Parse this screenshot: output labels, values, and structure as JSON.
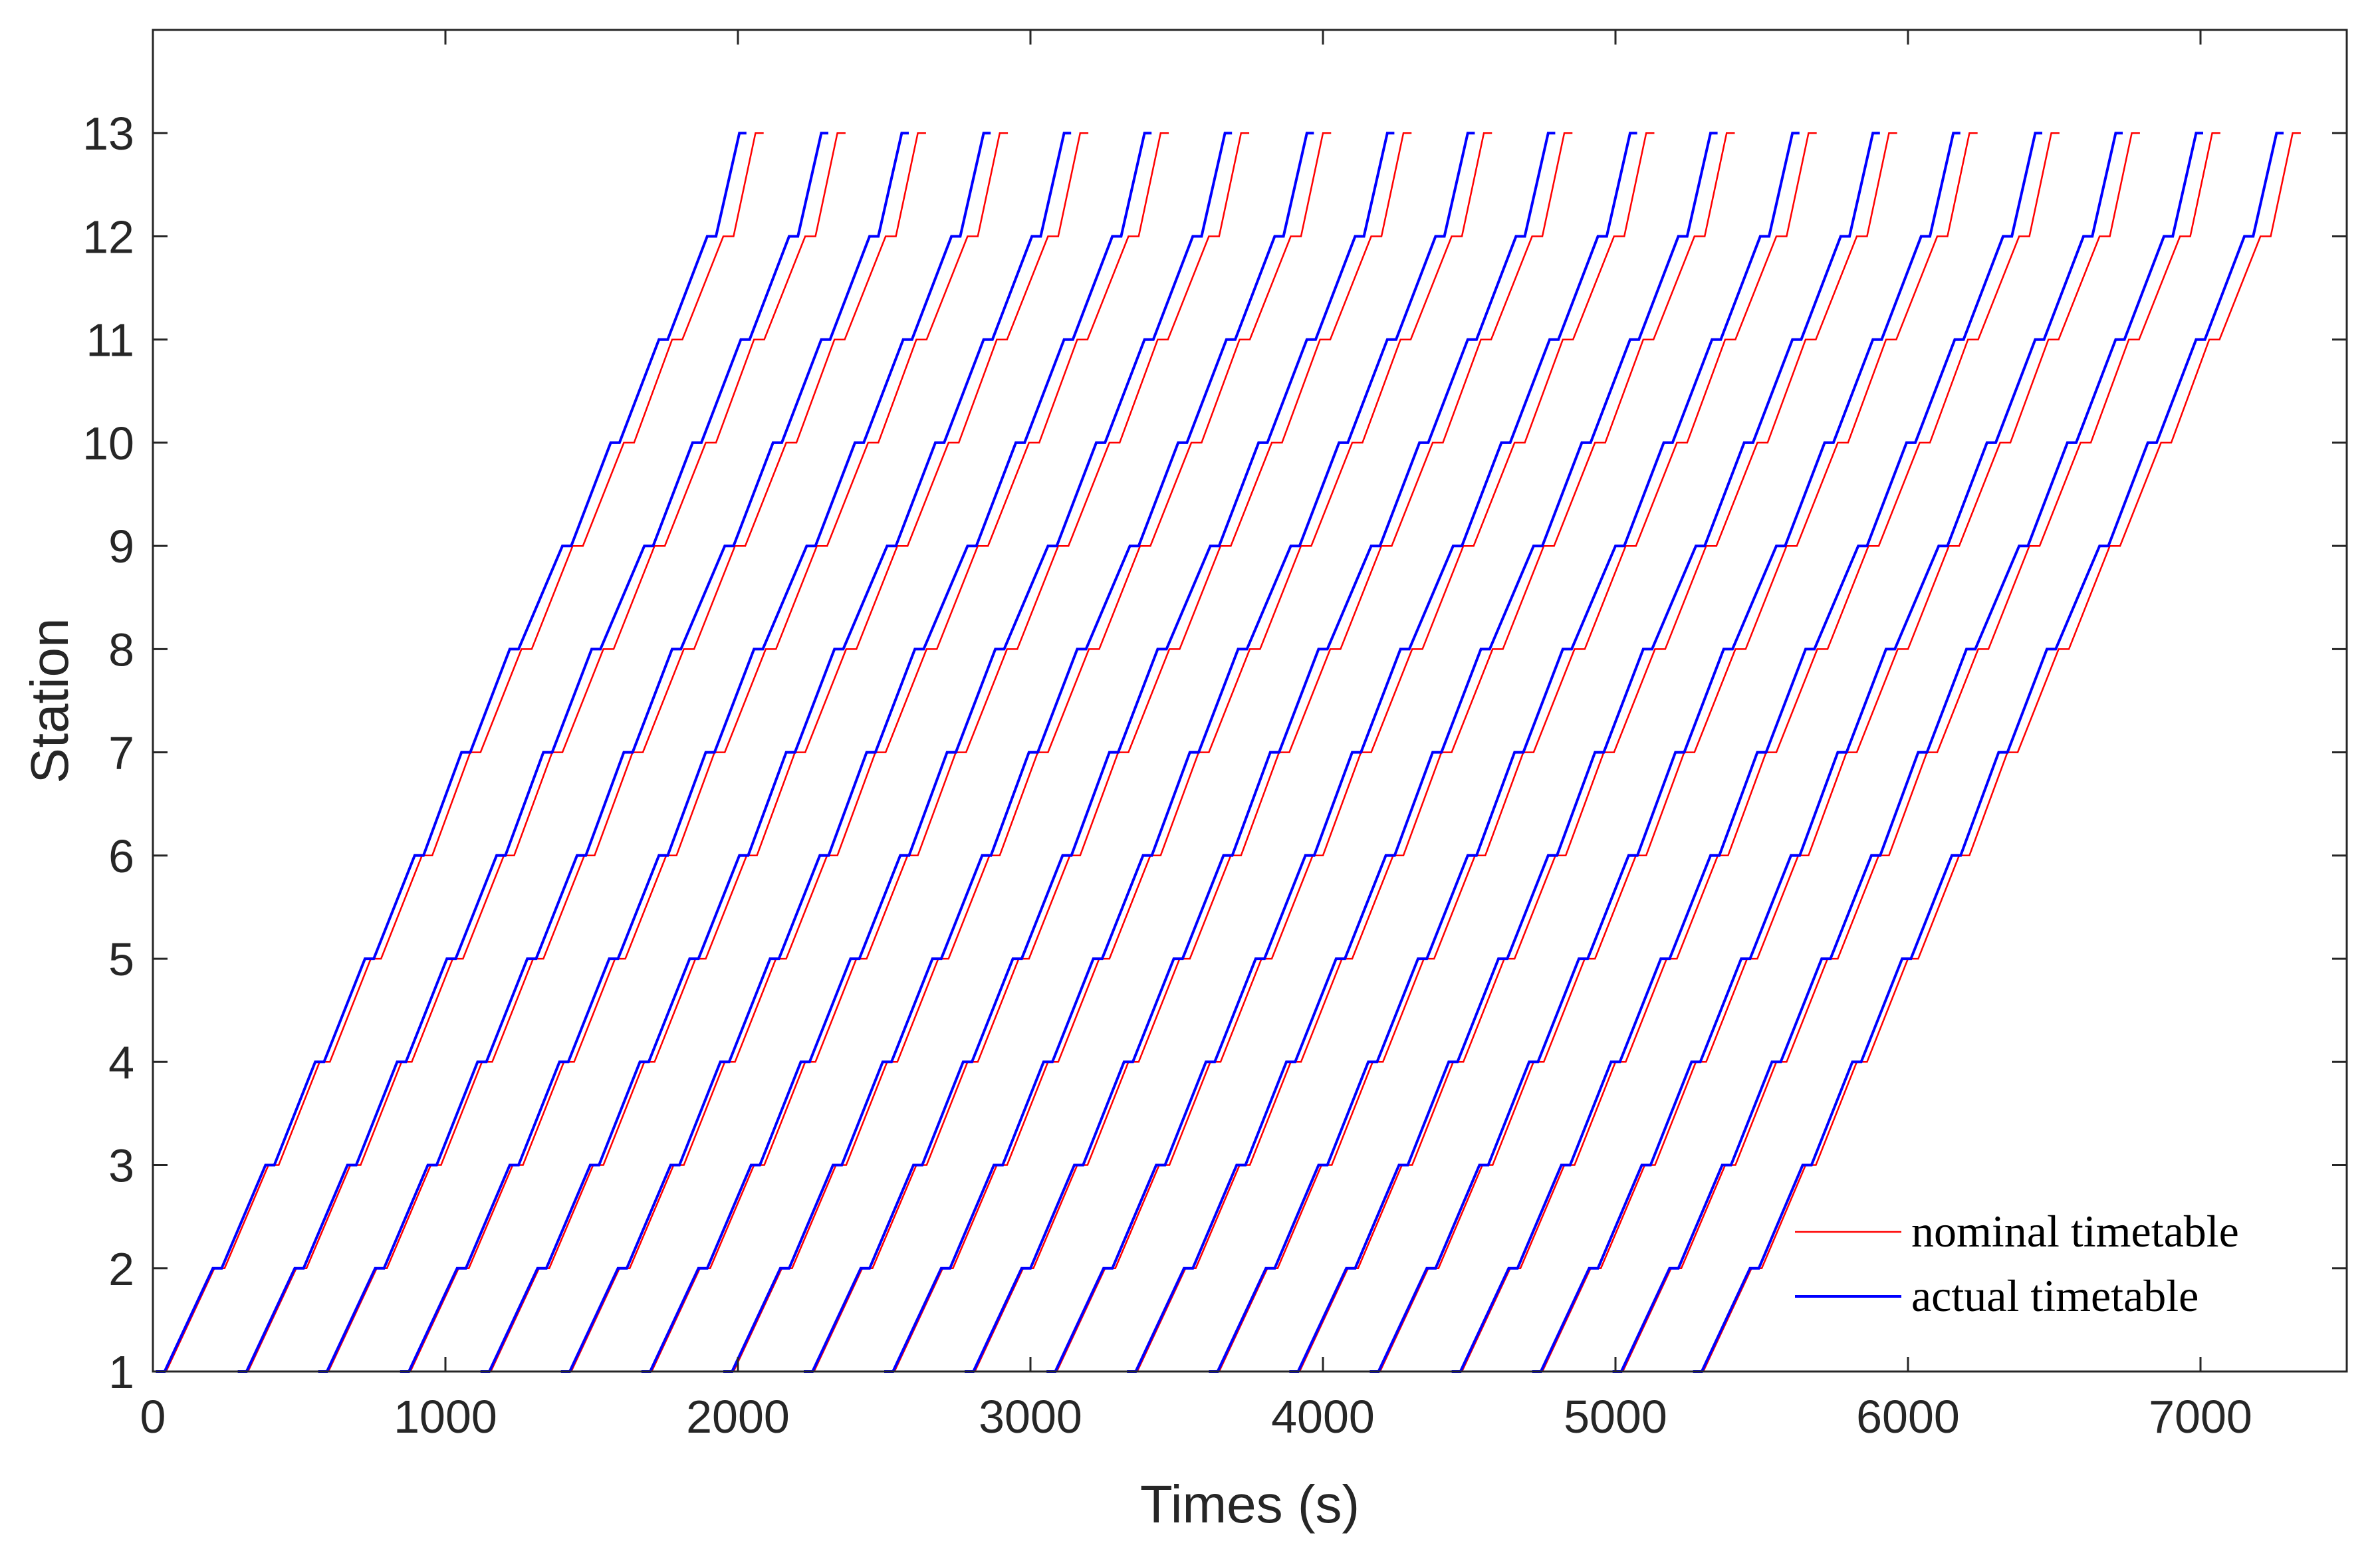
{
  "chart_data": {
    "type": "line",
    "title": "",
    "xlabel": "Times (s)",
    "ylabel": "Station",
    "xlim": [
      0,
      7500
    ],
    "ylim": [
      1,
      14
    ],
    "xticks": [
      0,
      1000,
      2000,
      3000,
      4000,
      5000,
      6000,
      7000
    ],
    "yticks": [
      1,
      2,
      3,
      4,
      5,
      6,
      7,
      8,
      9,
      10,
      11,
      12,
      13
    ],
    "grid": false,
    "legend_position": "bottom-right",
    "n_trains": 20,
    "stations": [
      1,
      2,
      3,
      4,
      5,
      6,
      7,
      8,
      9,
      10,
      11,
      12,
      13
    ],
    "departure_times_s": [
      10,
      290,
      565,
      845,
      1120,
      1395,
      1670,
      1950,
      2225,
      2500,
      2775,
      3055,
      3330,
      3610,
      3885,
      4160,
      4440,
      4715,
      4990,
      5265
    ],
    "series": [
      {
        "name": "nominal timetable",
        "color": "#ff0000",
        "station_arrival_offsets_s": [
          0,
          200,
          385,
          560,
          735,
          910,
          1075,
          1250,
          1425,
          1600,
          1765,
          1940,
          2050
        ],
        "dwell_s": 35
      },
      {
        "name": "actual timetable",
        "color": "#0000ff",
        "station_arrival_offsets_s": [
          0,
          195,
          375,
          545,
          715,
          885,
          1045,
          1210,
          1390,
          1555,
          1720,
          1885,
          1995
        ],
        "dwell_s": 30
      }
    ]
  }
}
